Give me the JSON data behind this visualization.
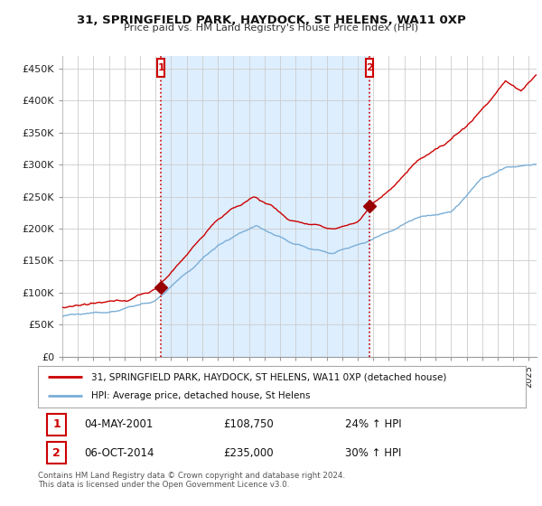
{
  "title": "31, SPRINGFIELD PARK, HAYDOCK, ST HELENS, WA11 0XP",
  "subtitle": "Price paid vs. HM Land Registry's House Price Index (HPI)",
  "ylabel_ticks": [
    "£0",
    "£50K",
    "£100K",
    "£150K",
    "£200K",
    "£250K",
    "£300K",
    "£350K",
    "£400K",
    "£450K"
  ],
  "ytick_vals": [
    0,
    50000,
    100000,
    150000,
    200000,
    250000,
    300000,
    350000,
    400000,
    450000
  ],
  "ylim": [
    0,
    470000
  ],
  "xlim_start": 1995.0,
  "xlim_end": 2025.5,
  "sale1_x": 2001.34,
  "sale1_y": 108750,
  "sale1_label": "1",
  "sale2_x": 2014.76,
  "sale2_y": 235000,
  "sale2_label": "2",
  "red_line_color": "#cc0000",
  "blue_line_color": "#7aaed6",
  "fill_color": "#ddeeff",
  "vline_color": "#cc0000",
  "dot_color": "#990000",
  "legend_label1": "31, SPRINGFIELD PARK, HAYDOCK, ST HELENS, WA11 0XP (detached house)",
  "legend_label2": "HPI: Average price, detached house, St Helens",
  "annotation1_date": "04-MAY-2001",
  "annotation1_price": "£108,750",
  "annotation1_hpi": "24% ↑ HPI",
  "annotation2_date": "06-OCT-2014",
  "annotation2_price": "£235,000",
  "annotation2_hpi": "30% ↑ HPI",
  "footer": "Contains HM Land Registry data © Crown copyright and database right 2024.\nThis data is licensed under the Open Government Licence v3.0.",
  "background_color": "#ffffff",
  "grid_color": "#cccccc"
}
